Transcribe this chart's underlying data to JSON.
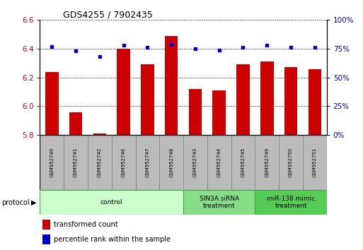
{
  "title": "GDS4255 / 7902435",
  "samples": [
    "GSM952740",
    "GSM952741",
    "GSM952742",
    "GSM952746",
    "GSM952747",
    "GSM952748",
    "GSM952743",
    "GSM952744",
    "GSM952745",
    "GSM952749",
    "GSM952750",
    "GSM952751"
  ],
  "transformed_counts": [
    6.24,
    5.96,
    5.81,
    6.4,
    6.29,
    6.49,
    6.12,
    6.11,
    6.29,
    6.31,
    6.27,
    6.26
  ],
  "percentile_ranks": [
    77,
    73,
    68,
    78,
    76,
    79,
    75,
    74,
    76,
    78,
    76,
    76
  ],
  "bar_bottom": 5.8,
  "ylim_left": [
    5.8,
    6.6
  ],
  "ylim_right": [
    0,
    100
  ],
  "yticks_left": [
    5.8,
    6.0,
    6.2,
    6.4,
    6.6
  ],
  "yticks_right": [
    0,
    25,
    50,
    75,
    100
  ],
  "bar_color": "#cc0000",
  "dot_color": "#0000cc",
  "groups": [
    {
      "label": "control",
      "start": 0,
      "end": 6,
      "color": "#ccffcc",
      "border": "#44aa44"
    },
    {
      "label": "SIN3A siRNA\ntreatment",
      "start": 6,
      "end": 9,
      "color": "#88dd88",
      "border": "#44aa44"
    },
    {
      "label": "miR-138 mimic\ntreatment",
      "start": 9,
      "end": 12,
      "color": "#55cc55",
      "border": "#44aa44"
    }
  ],
  "xlabel_color": "#cc0000",
  "ylabel_right_color": "#0000cc",
  "gridline_color": "#000000",
  "tick_label_bg": "#bbbbbb",
  "tick_label_border": "#888888"
}
